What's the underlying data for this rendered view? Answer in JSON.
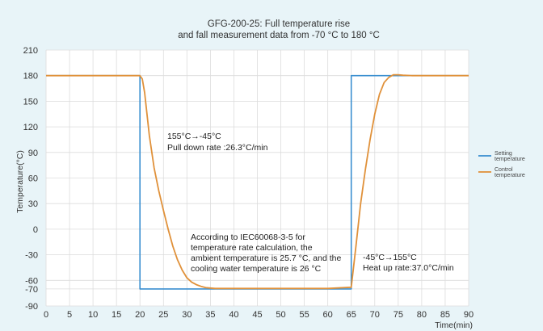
{
  "chart_data": {
    "type": "line",
    "title_lines": [
      "GFG-200-25: Full temperature rise",
      "and fall measurement data from -70 °C to 180 °C"
    ],
    "xlabel": "Time(min)",
    "ylabel": "Temperature(°C)",
    "xlim": [
      0,
      90
    ],
    "ylim": [
      -90,
      210
    ],
    "x_ticks": [
      0,
      5,
      10,
      15,
      20,
      25,
      30,
      35,
      40,
      45,
      50,
      55,
      60,
      65,
      70,
      75,
      80,
      85,
      90
    ],
    "y_ticks": [
      210,
      180,
      150,
      120,
      90,
      60,
      30,
      0,
      -30,
      -60,
      -70,
      -90
    ],
    "grid": true,
    "legend_position": "right",
    "series": [
      {
        "name": "Setting temperature",
        "color": "#3a8fd0",
        "x": [
          0,
          20,
          20,
          65,
          65,
          90
        ],
        "y": [
          180,
          180,
          -70,
          -70,
          180,
          180
        ]
      },
      {
        "name": "Control temperature",
        "color": "#e0913a",
        "x": [
          0,
          20,
          20.5,
          21,
          22,
          23,
          24,
          25,
          26,
          27,
          28,
          29,
          30,
          31,
          32,
          33,
          34,
          35,
          36,
          40,
          50,
          60,
          65,
          66,
          67,
          68,
          69,
          70,
          71,
          72,
          73,
          74,
          75,
          76,
          78,
          80,
          85,
          90
        ],
        "y": [
          180,
          180,
          176,
          160,
          110,
          72,
          45,
          22,
          0,
          -20,
          -36,
          -48,
          -57,
          -62,
          -65,
          -67,
          -68.5,
          -69,
          -69.5,
          -69.5,
          -69.5,
          -69.5,
          -68,
          -20,
          30,
          70,
          105,
          135,
          158,
          172,
          178,
          181,
          181,
          180.5,
          180,
          180,
          180,
          180
        ]
      }
    ],
    "annotations": [
      {
        "lines": [
          "155°C→-45°C",
          "Pull down rate :26.3°C/min"
        ]
      },
      {
        "lines": [
          "According to IEC60068-3-5 for",
          "temperature rate calculation, the",
          "ambient temperature is 25.7 °C, and the",
          "cooling water temperature is 26 °C"
        ]
      },
      {
        "lines": [
          "-45°C→155°C",
          "Heat up rate:37.0°C/min"
        ]
      }
    ]
  },
  "style": {
    "page_background": "#e8f4f8",
    "plot_background": "#ffffff",
    "grid_color": "#dcdcdc"
  }
}
